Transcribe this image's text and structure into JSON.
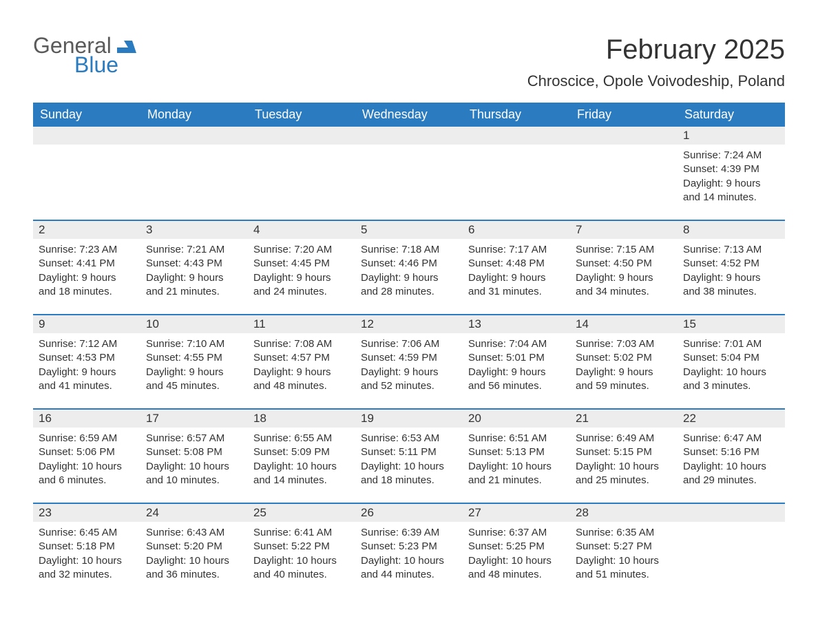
{
  "logo": {
    "general": "General",
    "blue": "Blue"
  },
  "title": "February 2025",
  "location": "Chroscice, Opole Voivodeship, Poland",
  "colors": {
    "header_bg": "#2a7bbf",
    "header_text": "#ffffff",
    "row_accent": "#2a7bbf",
    "daynum_bg": "#ededed",
    "text": "#333333",
    "logo_gray": "#5a5a5a",
    "logo_blue": "#2a7bbf",
    "background": "#ffffff"
  },
  "typography": {
    "title_fontsize": 40,
    "location_fontsize": 22,
    "header_fontsize": 18,
    "daynum_fontsize": 17,
    "detail_fontsize": 15,
    "logo_fontsize": 32
  },
  "day_names": [
    "Sunday",
    "Monday",
    "Tuesday",
    "Wednesday",
    "Thursday",
    "Friday",
    "Saturday"
  ],
  "weeks": [
    [
      null,
      null,
      null,
      null,
      null,
      null,
      {
        "n": "1",
        "sunrise": "Sunrise: 7:24 AM",
        "sunset": "Sunset: 4:39 PM",
        "daylight": "Daylight: 9 hours and 14 minutes."
      }
    ],
    [
      {
        "n": "2",
        "sunrise": "Sunrise: 7:23 AM",
        "sunset": "Sunset: 4:41 PM",
        "daylight": "Daylight: 9 hours and 18 minutes."
      },
      {
        "n": "3",
        "sunrise": "Sunrise: 7:21 AM",
        "sunset": "Sunset: 4:43 PM",
        "daylight": "Daylight: 9 hours and 21 minutes."
      },
      {
        "n": "4",
        "sunrise": "Sunrise: 7:20 AM",
        "sunset": "Sunset: 4:45 PM",
        "daylight": "Daylight: 9 hours and 24 minutes."
      },
      {
        "n": "5",
        "sunrise": "Sunrise: 7:18 AM",
        "sunset": "Sunset: 4:46 PM",
        "daylight": "Daylight: 9 hours and 28 minutes."
      },
      {
        "n": "6",
        "sunrise": "Sunrise: 7:17 AM",
        "sunset": "Sunset: 4:48 PM",
        "daylight": "Daylight: 9 hours and 31 minutes."
      },
      {
        "n": "7",
        "sunrise": "Sunrise: 7:15 AM",
        "sunset": "Sunset: 4:50 PM",
        "daylight": "Daylight: 9 hours and 34 minutes."
      },
      {
        "n": "8",
        "sunrise": "Sunrise: 7:13 AM",
        "sunset": "Sunset: 4:52 PM",
        "daylight": "Daylight: 9 hours and 38 minutes."
      }
    ],
    [
      {
        "n": "9",
        "sunrise": "Sunrise: 7:12 AM",
        "sunset": "Sunset: 4:53 PM",
        "daylight": "Daylight: 9 hours and 41 minutes."
      },
      {
        "n": "10",
        "sunrise": "Sunrise: 7:10 AM",
        "sunset": "Sunset: 4:55 PM",
        "daylight": "Daylight: 9 hours and 45 minutes."
      },
      {
        "n": "11",
        "sunrise": "Sunrise: 7:08 AM",
        "sunset": "Sunset: 4:57 PM",
        "daylight": "Daylight: 9 hours and 48 minutes."
      },
      {
        "n": "12",
        "sunrise": "Sunrise: 7:06 AM",
        "sunset": "Sunset: 4:59 PM",
        "daylight": "Daylight: 9 hours and 52 minutes."
      },
      {
        "n": "13",
        "sunrise": "Sunrise: 7:04 AM",
        "sunset": "Sunset: 5:01 PM",
        "daylight": "Daylight: 9 hours and 56 minutes."
      },
      {
        "n": "14",
        "sunrise": "Sunrise: 7:03 AM",
        "sunset": "Sunset: 5:02 PM",
        "daylight": "Daylight: 9 hours and 59 minutes."
      },
      {
        "n": "15",
        "sunrise": "Sunrise: 7:01 AM",
        "sunset": "Sunset: 5:04 PM",
        "daylight": "Daylight: 10 hours and 3 minutes."
      }
    ],
    [
      {
        "n": "16",
        "sunrise": "Sunrise: 6:59 AM",
        "sunset": "Sunset: 5:06 PM",
        "daylight": "Daylight: 10 hours and 6 minutes."
      },
      {
        "n": "17",
        "sunrise": "Sunrise: 6:57 AM",
        "sunset": "Sunset: 5:08 PM",
        "daylight": "Daylight: 10 hours and 10 minutes."
      },
      {
        "n": "18",
        "sunrise": "Sunrise: 6:55 AM",
        "sunset": "Sunset: 5:09 PM",
        "daylight": "Daylight: 10 hours and 14 minutes."
      },
      {
        "n": "19",
        "sunrise": "Sunrise: 6:53 AM",
        "sunset": "Sunset: 5:11 PM",
        "daylight": "Daylight: 10 hours and 18 minutes."
      },
      {
        "n": "20",
        "sunrise": "Sunrise: 6:51 AM",
        "sunset": "Sunset: 5:13 PM",
        "daylight": "Daylight: 10 hours and 21 minutes."
      },
      {
        "n": "21",
        "sunrise": "Sunrise: 6:49 AM",
        "sunset": "Sunset: 5:15 PM",
        "daylight": "Daylight: 10 hours and 25 minutes."
      },
      {
        "n": "22",
        "sunrise": "Sunrise: 6:47 AM",
        "sunset": "Sunset: 5:16 PM",
        "daylight": "Daylight: 10 hours and 29 minutes."
      }
    ],
    [
      {
        "n": "23",
        "sunrise": "Sunrise: 6:45 AM",
        "sunset": "Sunset: 5:18 PM",
        "daylight": "Daylight: 10 hours and 32 minutes."
      },
      {
        "n": "24",
        "sunrise": "Sunrise: 6:43 AM",
        "sunset": "Sunset: 5:20 PM",
        "daylight": "Daylight: 10 hours and 36 minutes."
      },
      {
        "n": "25",
        "sunrise": "Sunrise: 6:41 AM",
        "sunset": "Sunset: 5:22 PM",
        "daylight": "Daylight: 10 hours and 40 minutes."
      },
      {
        "n": "26",
        "sunrise": "Sunrise: 6:39 AM",
        "sunset": "Sunset: 5:23 PM",
        "daylight": "Daylight: 10 hours and 44 minutes."
      },
      {
        "n": "27",
        "sunrise": "Sunrise: 6:37 AM",
        "sunset": "Sunset: 5:25 PM",
        "daylight": "Daylight: 10 hours and 48 minutes."
      },
      {
        "n": "28",
        "sunrise": "Sunrise: 6:35 AM",
        "sunset": "Sunset: 5:27 PM",
        "daylight": "Daylight: 10 hours and 51 minutes."
      },
      null
    ]
  ]
}
